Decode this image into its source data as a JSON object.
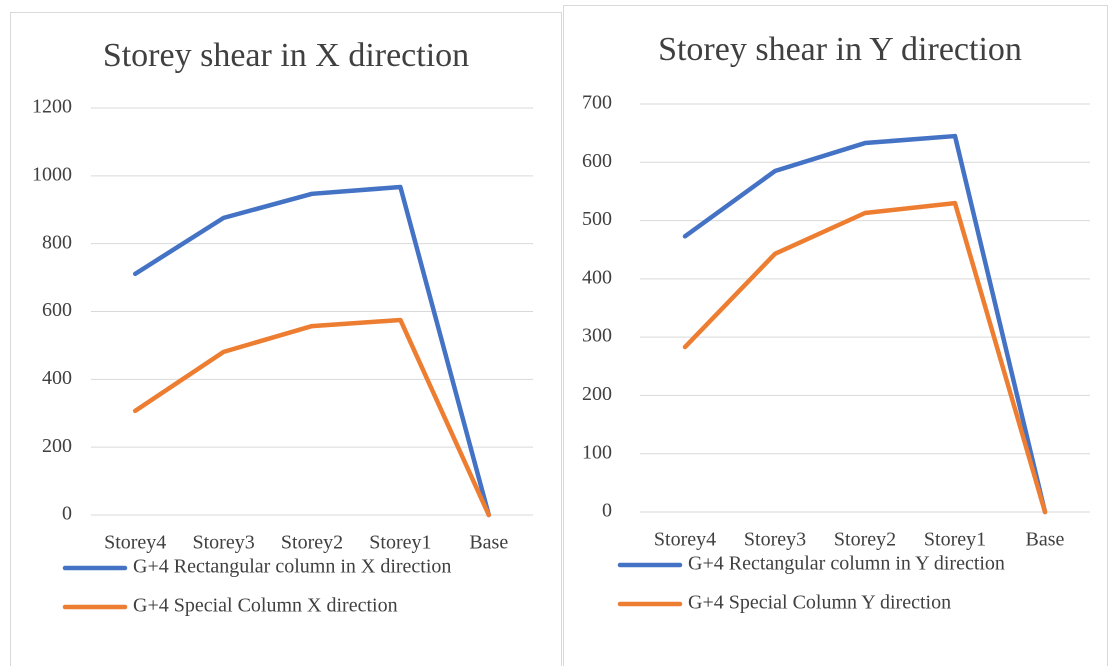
{
  "chart_data": [
    {
      "type": "line",
      "title": "Storey shear in X direction",
      "categories": [
        "Storey4",
        "Storey3",
        "Storey2",
        "Storey1",
        "Base"
      ],
      "series": [
        {
          "name": "G+4 Rectangular column in X direction",
          "color": "#4472c4",
          "values": [
            711,
            876,
            947,
            967,
            0
          ]
        },
        {
          "name": "G+4 Special Column X direction",
          "color": "#ed7d31",
          "values": [
            307,
            481,
            557,
            575,
            0
          ]
        }
      ],
      "ylim": [
        0,
        1200
      ],
      "yticks": [
        0,
        200,
        400,
        600,
        800,
        1000,
        1200
      ],
      "grid": true,
      "legend": "bottom"
    },
    {
      "type": "line",
      "title": "Storey shear in Y direction",
      "categories": [
        "Storey4",
        "Storey3",
        "Storey2",
        "Storey1",
        "Base"
      ],
      "series": [
        {
          "name": "G+4 Rectangular column in Y direction",
          "color": "#4472c4",
          "values": [
            473,
            585,
            633,
            645,
            0
          ]
        },
        {
          "name": "G+4 Special Column Y direction",
          "color": "#ed7d31",
          "values": [
            283,
            443,
            513,
            530,
            0
          ]
        }
      ],
      "ylim": [
        0,
        700
      ],
      "yticks": [
        0,
        100,
        200,
        300,
        400,
        500,
        600,
        700
      ],
      "grid": true,
      "legend": "bottom"
    }
  ]
}
